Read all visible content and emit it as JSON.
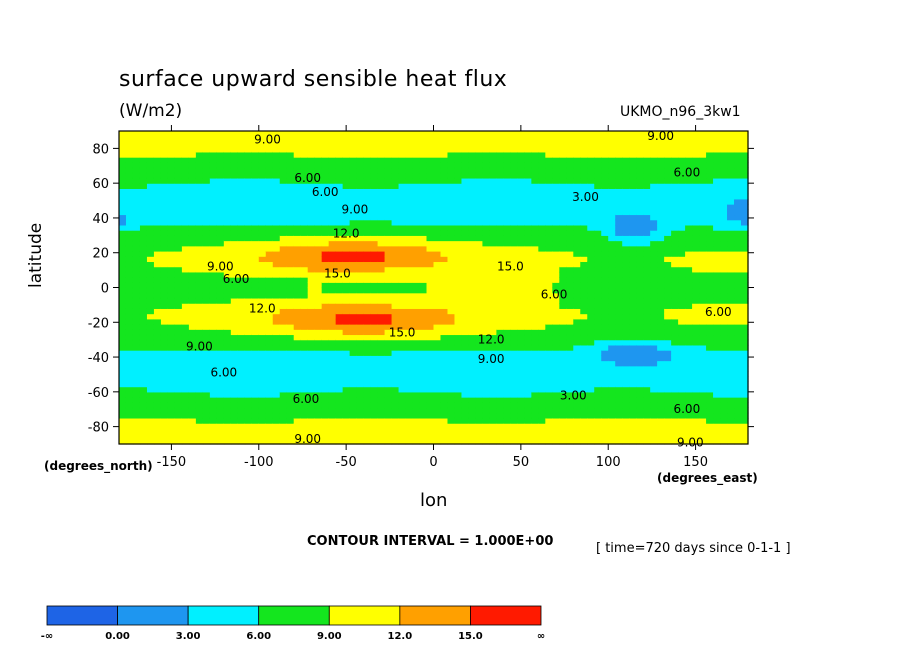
{
  "chart_data": {
    "type": "heatmap",
    "title": "surface upward sensible heat flux",
    "units": "(W/m2)",
    "dataset": "UKMO_n96_3kw1",
    "xlabel": "lon",
    "ylabel": "latitude",
    "x_unit": "(degrees_east)",
    "y_unit": "(degrees_north)",
    "xlim": [
      -180,
      180
    ],
    "ylim": [
      -90,
      90
    ],
    "x_ticks": [
      "-150",
      "-100",
      "-50",
      "0",
      "50",
      "100",
      "150"
    ],
    "y_ticks": [
      "80",
      "60",
      "40",
      "20",
      "0",
      "-20",
      "-40",
      "-60",
      "-80"
    ],
    "contour_interval_text": "CONTOUR INTERVAL = 1.000E+00",
    "time_text": "[ time=720 days since 0-1-1 ]",
    "levels": [
      {
        "range": [
          null,
          0
        ],
        "color": "#1e64e6"
      },
      {
        "range": [
          0,
          3
        ],
        "color": "#1e96f0"
      },
      {
        "range": [
          3,
          6
        ],
        "color": "#00f0ff"
      },
      {
        "range": [
          6,
          9
        ],
        "color": "#14e61e"
      },
      {
        "range": [
          9,
          12
        ],
        "color": "#ffff00"
      },
      {
        "range": [
          12,
          15
        ],
        "color": "#ffa000"
      },
      {
        "range": [
          15,
          null
        ],
        "color": "#ff1a00"
      }
    ],
    "colorbar_labels": [
      "-∞",
      "0.00",
      "3.00",
      "6.00",
      "9.00",
      "12.0",
      "15.0",
      "∞"
    ],
    "contour_labels": [
      {
        "text": "9.00",
        "lon": -95,
        "lat": 85
      },
      {
        "text": "9.00",
        "lon": 130,
        "lat": 87
      },
      {
        "text": "6.00",
        "lon": -72,
        "lat": 63
      },
      {
        "text": "6.00",
        "lon": 145,
        "lat": 66
      },
      {
        "text": "6.00",
        "lon": -62,
        "lat": 55
      },
      {
        "text": "9.00",
        "lon": -45,
        "lat": 45
      },
      {
        "text": "3.00",
        "lon": 87,
        "lat": 52
      },
      {
        "text": "12.0",
        "lon": -50,
        "lat": 31
      },
      {
        "text": "9.00",
        "lon": -122,
        "lat": 12
      },
      {
        "text": "6.00",
        "lon": -113,
        "lat": 5
      },
      {
        "text": "15.0",
        "lon": -55,
        "lat": 8
      },
      {
        "text": "15.0",
        "lon": 44,
        "lat": 12
      },
      {
        "text": "6.00",
        "lon": 69,
        "lat": -4
      },
      {
        "text": "6.00",
        "lon": 163,
        "lat": -14
      },
      {
        "text": "12.0",
        "lon": -98,
        "lat": -12
      },
      {
        "text": "15.0",
        "lon": -18,
        "lat": -26
      },
      {
        "text": "12.0",
        "lon": 33,
        "lat": -30
      },
      {
        "text": "9.00",
        "lon": -134,
        "lat": -34
      },
      {
        "text": "9.00",
        "lon": 33,
        "lat": -41
      },
      {
        "text": "6.00",
        "lon": -120,
        "lat": -49
      },
      {
        "text": "3.00",
        "lon": 80,
        "lat": -62
      },
      {
        "text": "6.00",
        "lon": -73,
        "lat": -64
      },
      {
        "text": "6.00",
        "lon": 145,
        "lat": -70
      },
      {
        "text": "9.00",
        "lon": -72,
        "lat": -87
      },
      {
        "text": "9.00",
        "lon": 147,
        "lat": -89
      }
    ],
    "field_features": [
      {
        "lon": -45,
        "lat": 18,
        "rlon": 60,
        "rlat": 10,
        "value": 16
      },
      {
        "lon": -40,
        "lat": -18,
        "rlon": 60,
        "rlat": 10,
        "value": 16
      },
      {
        "lon": 115,
        "lat": 35,
        "rlon": 18,
        "rlat": 10,
        "value": 0
      },
      {
        "lon": 115,
        "lat": -38,
        "rlon": 25,
        "rlat": 8,
        "value": 0
      },
      {
        "lon": -180,
        "lat": 40,
        "rlon": 12,
        "rlat": 8,
        "value": 2
      },
      {
        "lon": 180,
        "lat": 42,
        "rlon": 15,
        "rlat": 8,
        "value": 2
      }
    ]
  }
}
